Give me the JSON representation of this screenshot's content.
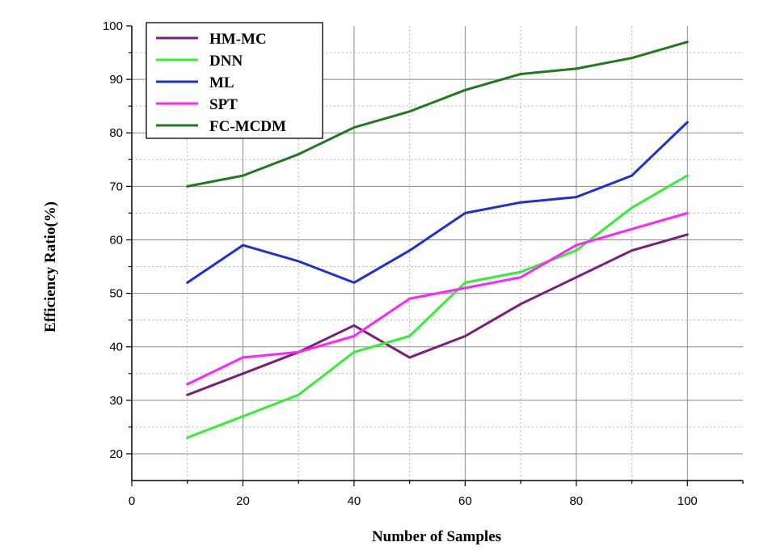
{
  "chart_data": {
    "type": "line",
    "xlabel": "Number of Samples",
    "ylabel": "Efficiency Ratio(%)",
    "xlim": [
      0,
      110
    ],
    "ylim": [
      15,
      100
    ],
    "xticks": [
      0,
      20,
      40,
      60,
      80,
      100
    ],
    "yticks": [
      20,
      30,
      40,
      50,
      60,
      70,
      80,
      90,
      100
    ],
    "grid": true,
    "legend_position": "top-left",
    "x": [
      10,
      20,
      30,
      40,
      50,
      60,
      70,
      80,
      90,
      100
    ],
    "series": [
      {
        "name": "HM-MC",
        "color": "#7b1e7a",
        "values": [
          31,
          35,
          39,
          44,
          38,
          42,
          48,
          53,
          58,
          61
        ]
      },
      {
        "name": "DNN",
        "color": "#33ee33",
        "values": [
          23,
          27,
          31,
          39,
          42,
          52,
          54,
          58,
          66,
          72
        ]
      },
      {
        "name": "ML",
        "color": "#1f2fd6",
        "values": [
          52,
          59,
          56,
          52,
          58,
          65,
          67,
          68,
          72,
          82
        ]
      },
      {
        "name": "SPT",
        "color": "#ff22ff",
        "values": [
          33,
          38,
          39,
          42,
          49,
          51,
          53,
          59,
          62,
          65
        ]
      },
      {
        "name": "FC-MCDM",
        "color": "#1f7a1f",
        "values": [
          70,
          72,
          76,
          81,
          84,
          88,
          91,
          92,
          94,
          97
        ]
      }
    ]
  }
}
